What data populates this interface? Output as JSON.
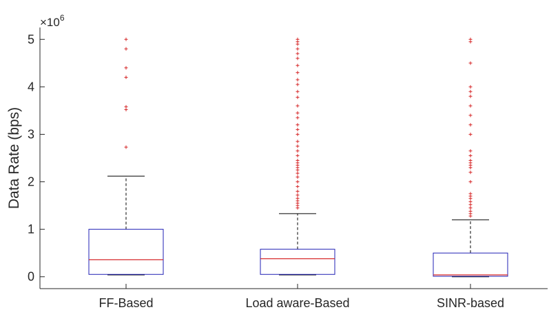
{
  "chart_data": {
    "type": "box",
    "ylabel": "Data Rate (bps)",
    "y_exponent_label": "×10",
    "y_exponent_power": "6",
    "ylim": [
      -0.25,
      5.25
    ],
    "yticks": [
      0,
      1,
      2,
      3,
      4,
      5
    ],
    "ytick_labels": [
      "0",
      "1",
      "2",
      "3",
      "4",
      "5"
    ],
    "grid": false,
    "colors": {
      "box": "#1f1fb4",
      "median": "#d62728",
      "whisker": "#000000",
      "outlier": "#d62728",
      "axis": "#262626"
    },
    "categories": [
      "FF-Based",
      "Load aware-Based",
      "SINR-based"
    ],
    "boxes": [
      {
        "category": "FF-Based",
        "lower_whisker": 0.04,
        "q1": 0.05,
        "median": 0.36,
        "q3": 1.0,
        "upper_whisker": 2.12,
        "outliers": [
          2.73,
          3.52,
          3.58,
          4.2,
          4.4,
          4.8,
          5.0
        ]
      },
      {
        "category": "Load aware-Based",
        "lower_whisker": 0.04,
        "q1": 0.05,
        "median": 0.38,
        "q3": 0.58,
        "upper_whisker": 1.33,
        "outliers": [
          1.45,
          1.5,
          1.55,
          1.6,
          1.65,
          1.72,
          1.8,
          1.9,
          2.0,
          2.1,
          2.18,
          2.25,
          2.3,
          2.35,
          2.4,
          2.45,
          2.55,
          2.65,
          2.75,
          2.85,
          3.0,
          3.1,
          3.2,
          3.35,
          3.45,
          3.6,
          3.78,
          3.9,
          4.05,
          4.15,
          4.3,
          4.45,
          4.6,
          4.7,
          4.8,
          4.9,
          4.95,
          5.0
        ]
      },
      {
        "category": "SINR-based",
        "lower_whisker": 0.0,
        "q1": 0.01,
        "median": 0.04,
        "q3": 0.5,
        "upper_whisker": 1.2,
        "outliers": [
          1.28,
          1.33,
          1.38,
          1.45,
          1.52,
          1.58,
          1.65,
          1.7,
          1.75,
          2.0,
          2.2,
          2.3,
          2.35,
          2.4,
          2.45,
          2.55,
          2.65,
          3.0,
          3.2,
          3.4,
          3.6,
          3.8,
          3.9,
          4.0,
          4.5,
          4.95,
          5.0
        ]
      }
    ]
  }
}
